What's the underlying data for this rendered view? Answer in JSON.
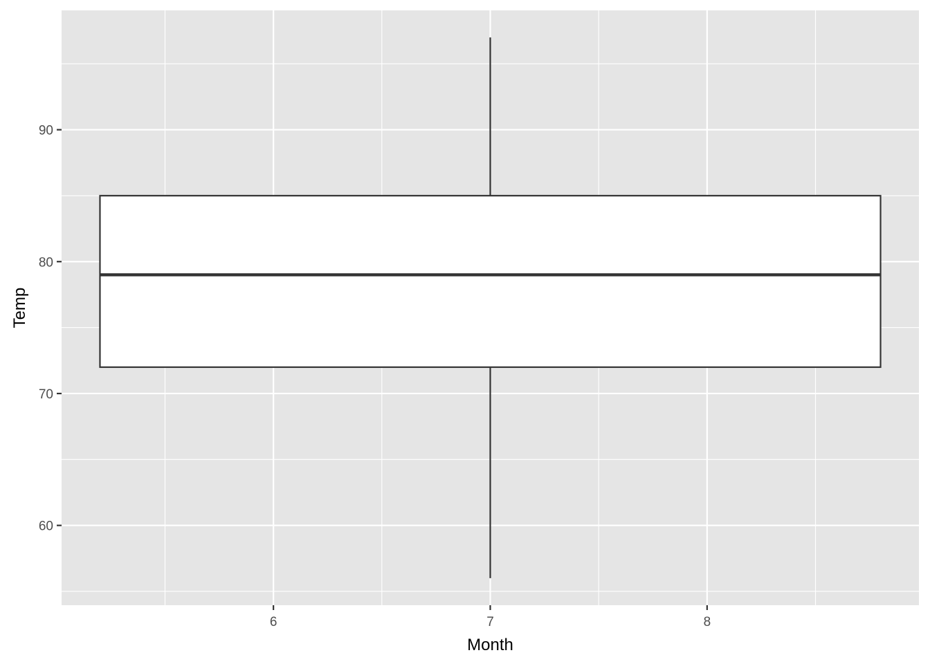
{
  "chart_data": {
    "type": "boxplot",
    "xlabel": "Month",
    "ylabel": "Temp",
    "x_ticks": [
      6,
      7,
      8
    ],
    "y_ticks": [
      60,
      70,
      80,
      90
    ],
    "xlim": [
      5.023,
      8.977
    ],
    "ylim": [
      53.95,
      99.05
    ],
    "grid": true,
    "boxes": [
      {
        "x_center": 7,
        "x_min": 5.2,
        "x_max": 8.8,
        "whisker_low": 56,
        "q1": 72,
        "median": 79,
        "q3": 85,
        "whisker_high": 97
      }
    ],
    "colors": {
      "panel_background": "#e5e5e5",
      "grid": "#ffffff",
      "box_fill": "#ffffff",
      "box_outline": "#333333",
      "tick_text": "#4d4d4d"
    }
  }
}
